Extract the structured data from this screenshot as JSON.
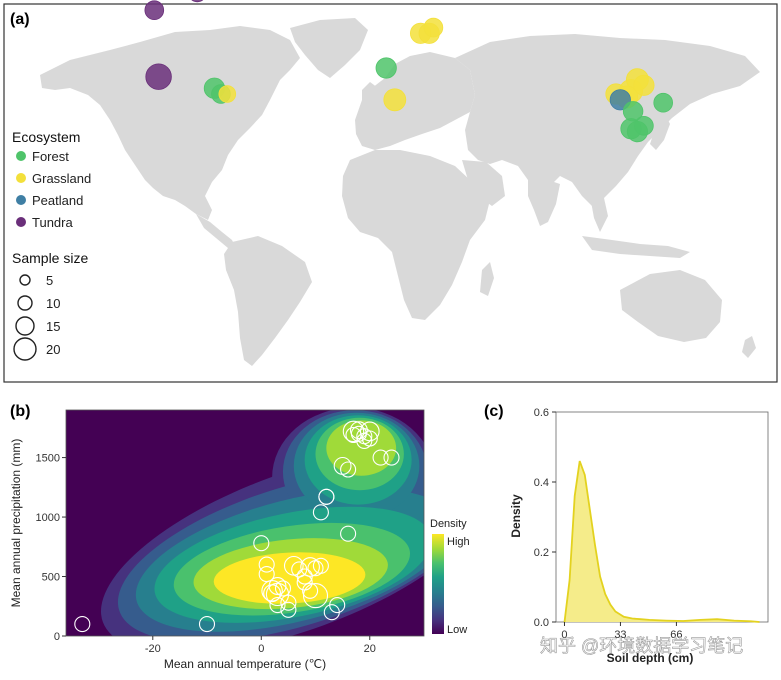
{
  "panel_a": {
    "label": "(a)",
    "legend_ecosystem_title": "Ecosystem",
    "ecosystems": [
      {
        "name": "Forest",
        "color": "#4fc46a"
      },
      {
        "name": "Grassland",
        "color": "#f3e03b"
      },
      {
        "name": "Peatland",
        "color": "#3f7fa4"
      },
      {
        "name": "Tundra",
        "color": "#6a2f7a"
      }
    ],
    "legend_size_title": "Sample size",
    "sizes": [
      {
        "label": "5",
        "value": 5
      },
      {
        "label": "10",
        "value": 10
      },
      {
        "label": "15",
        "value": 15
      },
      {
        "label": "20",
        "value": 20
      }
    ],
    "sites": [
      {
        "lon": -110,
        "lat": 74,
        "eco": "Tundra",
        "size": 6
      },
      {
        "lon": -90,
        "lat": 80,
        "eco": "Tundra",
        "size": 5
      },
      {
        "lon": -108,
        "lat": 51,
        "eco": "Tundra",
        "size": 16
      },
      {
        "lon": -82,
        "lat": 47,
        "eco": "Forest",
        "size": 8
      },
      {
        "lon": -79,
        "lat": 45,
        "eco": "Forest",
        "size": 6
      },
      {
        "lon": -76,
        "lat": 45,
        "eco": "Grassland",
        "size": 4
      },
      {
        "lon": -2,
        "lat": 54,
        "eco": "Forest",
        "size": 8
      },
      {
        "lon": 2,
        "lat": 43,
        "eco": "Grassland",
        "size": 10
      },
      {
        "lon": 14,
        "lat": 66,
        "eco": "Grassland",
        "size": 8
      },
      {
        "lon": 18,
        "lat": 66,
        "eco": "Grassland",
        "size": 8
      },
      {
        "lon": 20,
        "lat": 68,
        "eco": "Grassland",
        "size": 6
      },
      {
        "lon": 105,
        "lat": 45,
        "eco": "Grassland",
        "size": 8
      },
      {
        "lon": 112,
        "lat": 46,
        "eco": "Grassland",
        "size": 12
      },
      {
        "lon": 115,
        "lat": 50,
        "eco": "Grassland",
        "size": 10
      },
      {
        "lon": 118,
        "lat": 48,
        "eco": "Grassland",
        "size": 8
      },
      {
        "lon": 110,
        "lat": 44,
        "eco": "Grassland",
        "size": 10
      },
      {
        "lon": 107,
        "lat": 43,
        "eco": "Peatland",
        "size": 8
      },
      {
        "lon": 113,
        "lat": 39,
        "eco": "Forest",
        "size": 7
      },
      {
        "lon": 127,
        "lat": 42,
        "eco": "Forest",
        "size": 6
      },
      {
        "lon": 112,
        "lat": 33,
        "eco": "Forest",
        "size": 8
      },
      {
        "lon": 115,
        "lat": 32,
        "eco": "Forest",
        "size": 8
      },
      {
        "lon": 118,
        "lat": 34,
        "eco": "Forest",
        "size": 6
      }
    ]
  },
  "panel_b": {
    "label": "(b)",
    "colorbar_title": "Density",
    "colorbar_high": "High",
    "colorbar_low": "Low",
    "colormap": [
      "#440154",
      "#46327e",
      "#365c8d",
      "#277f8e",
      "#1fa187",
      "#4ac16d",
      "#a0da39",
      "#fde725"
    ]
  },
  "panel_c": {
    "label": "(c)",
    "line_color": "#e3d21f",
    "fill_color": "#f5ec8a"
  },
  "chart_data": [
    {
      "type": "scatter",
      "title": "",
      "xlabel": "Mean annual temperature (℃)",
      "ylabel": "Mean annual precipitation (mm)",
      "xlim": [
        -36,
        30
      ],
      "ylim": [
        0,
        1900
      ],
      "xticks": [
        -20,
        0,
        20
      ],
      "yticks": [
        0,
        500,
        1000,
        1500
      ],
      "x": [
        -33,
        -10,
        0,
        1,
        2,
        3,
        4,
        2,
        1,
        3,
        5,
        6,
        7,
        8,
        9,
        10,
        11,
        12,
        13,
        14,
        15,
        16,
        17,
        8,
        9,
        10,
        11,
        12,
        17,
        18,
        19,
        20,
        22,
        24,
        16,
        18,
        19,
        20,
        5,
        3
      ],
      "y": [
        100,
        100,
        780,
        600,
        380,
        350,
        400,
        360,
        520,
        260,
        220,
        590,
        560,
        450,
        380,
        340,
        1040,
        1170,
        200,
        260,
        1430,
        1400,
        1690,
        500,
        580,
        570,
        590,
        1170,
        1720,
        1700,
        1680,
        1660,
        1500,
        1500,
        860,
        1730,
        1640,
        1720,
        280,
        420
      ],
      "sizes": [
        5,
        5,
        5,
        5,
        8,
        9,
        5,
        6,
        5,
        5,
        5,
        7,
        5,
        5,
        5,
        10,
        5,
        5,
        5,
        5,
        6,
        5,
        5,
        5,
        7,
        5,
        5,
        5,
        8,
        5,
        5,
        5,
        5,
        5,
        5,
        6,
        5,
        7,
        5,
        6
      ],
      "density_contours": "kernel density estimate of sites, peak near (5℃, 450 mm), secondary peak near (19℃, 1700 mm)"
    },
    {
      "type": "area",
      "title": "",
      "xlabel": "Soil depth (cm)",
      "ylabel": "Density",
      "xlim": [
        -5,
        120
      ],
      "ylim": [
        0,
        0.6
      ],
      "yticks": [
        0.0,
        0.2,
        0.4,
        0.6
      ],
      "ytick_labels": [
        "0.0",
        "0.2",
        "0.4",
        "0.6"
      ],
      "xticks": [
        0,
        33,
        66
      ],
      "xtick_labels": [
        "0",
        "33",
        "66"
      ],
      "x": [
        0,
        3,
        6,
        9,
        12,
        15,
        18,
        21,
        24,
        27,
        30,
        35,
        40,
        45,
        50,
        60,
        70,
        80,
        90,
        100,
        110,
        115
      ],
      "y": [
        0.0,
        0.12,
        0.36,
        0.46,
        0.42,
        0.32,
        0.22,
        0.13,
        0.08,
        0.05,
        0.03,
        0.015,
        0.01,
        0.008,
        0.006,
        0.004,
        0.003,
        0.006,
        0.008,
        0.004,
        0.002,
        0.0
      ]
    }
  ],
  "watermark": "知乎 @环境数据学习笔记"
}
